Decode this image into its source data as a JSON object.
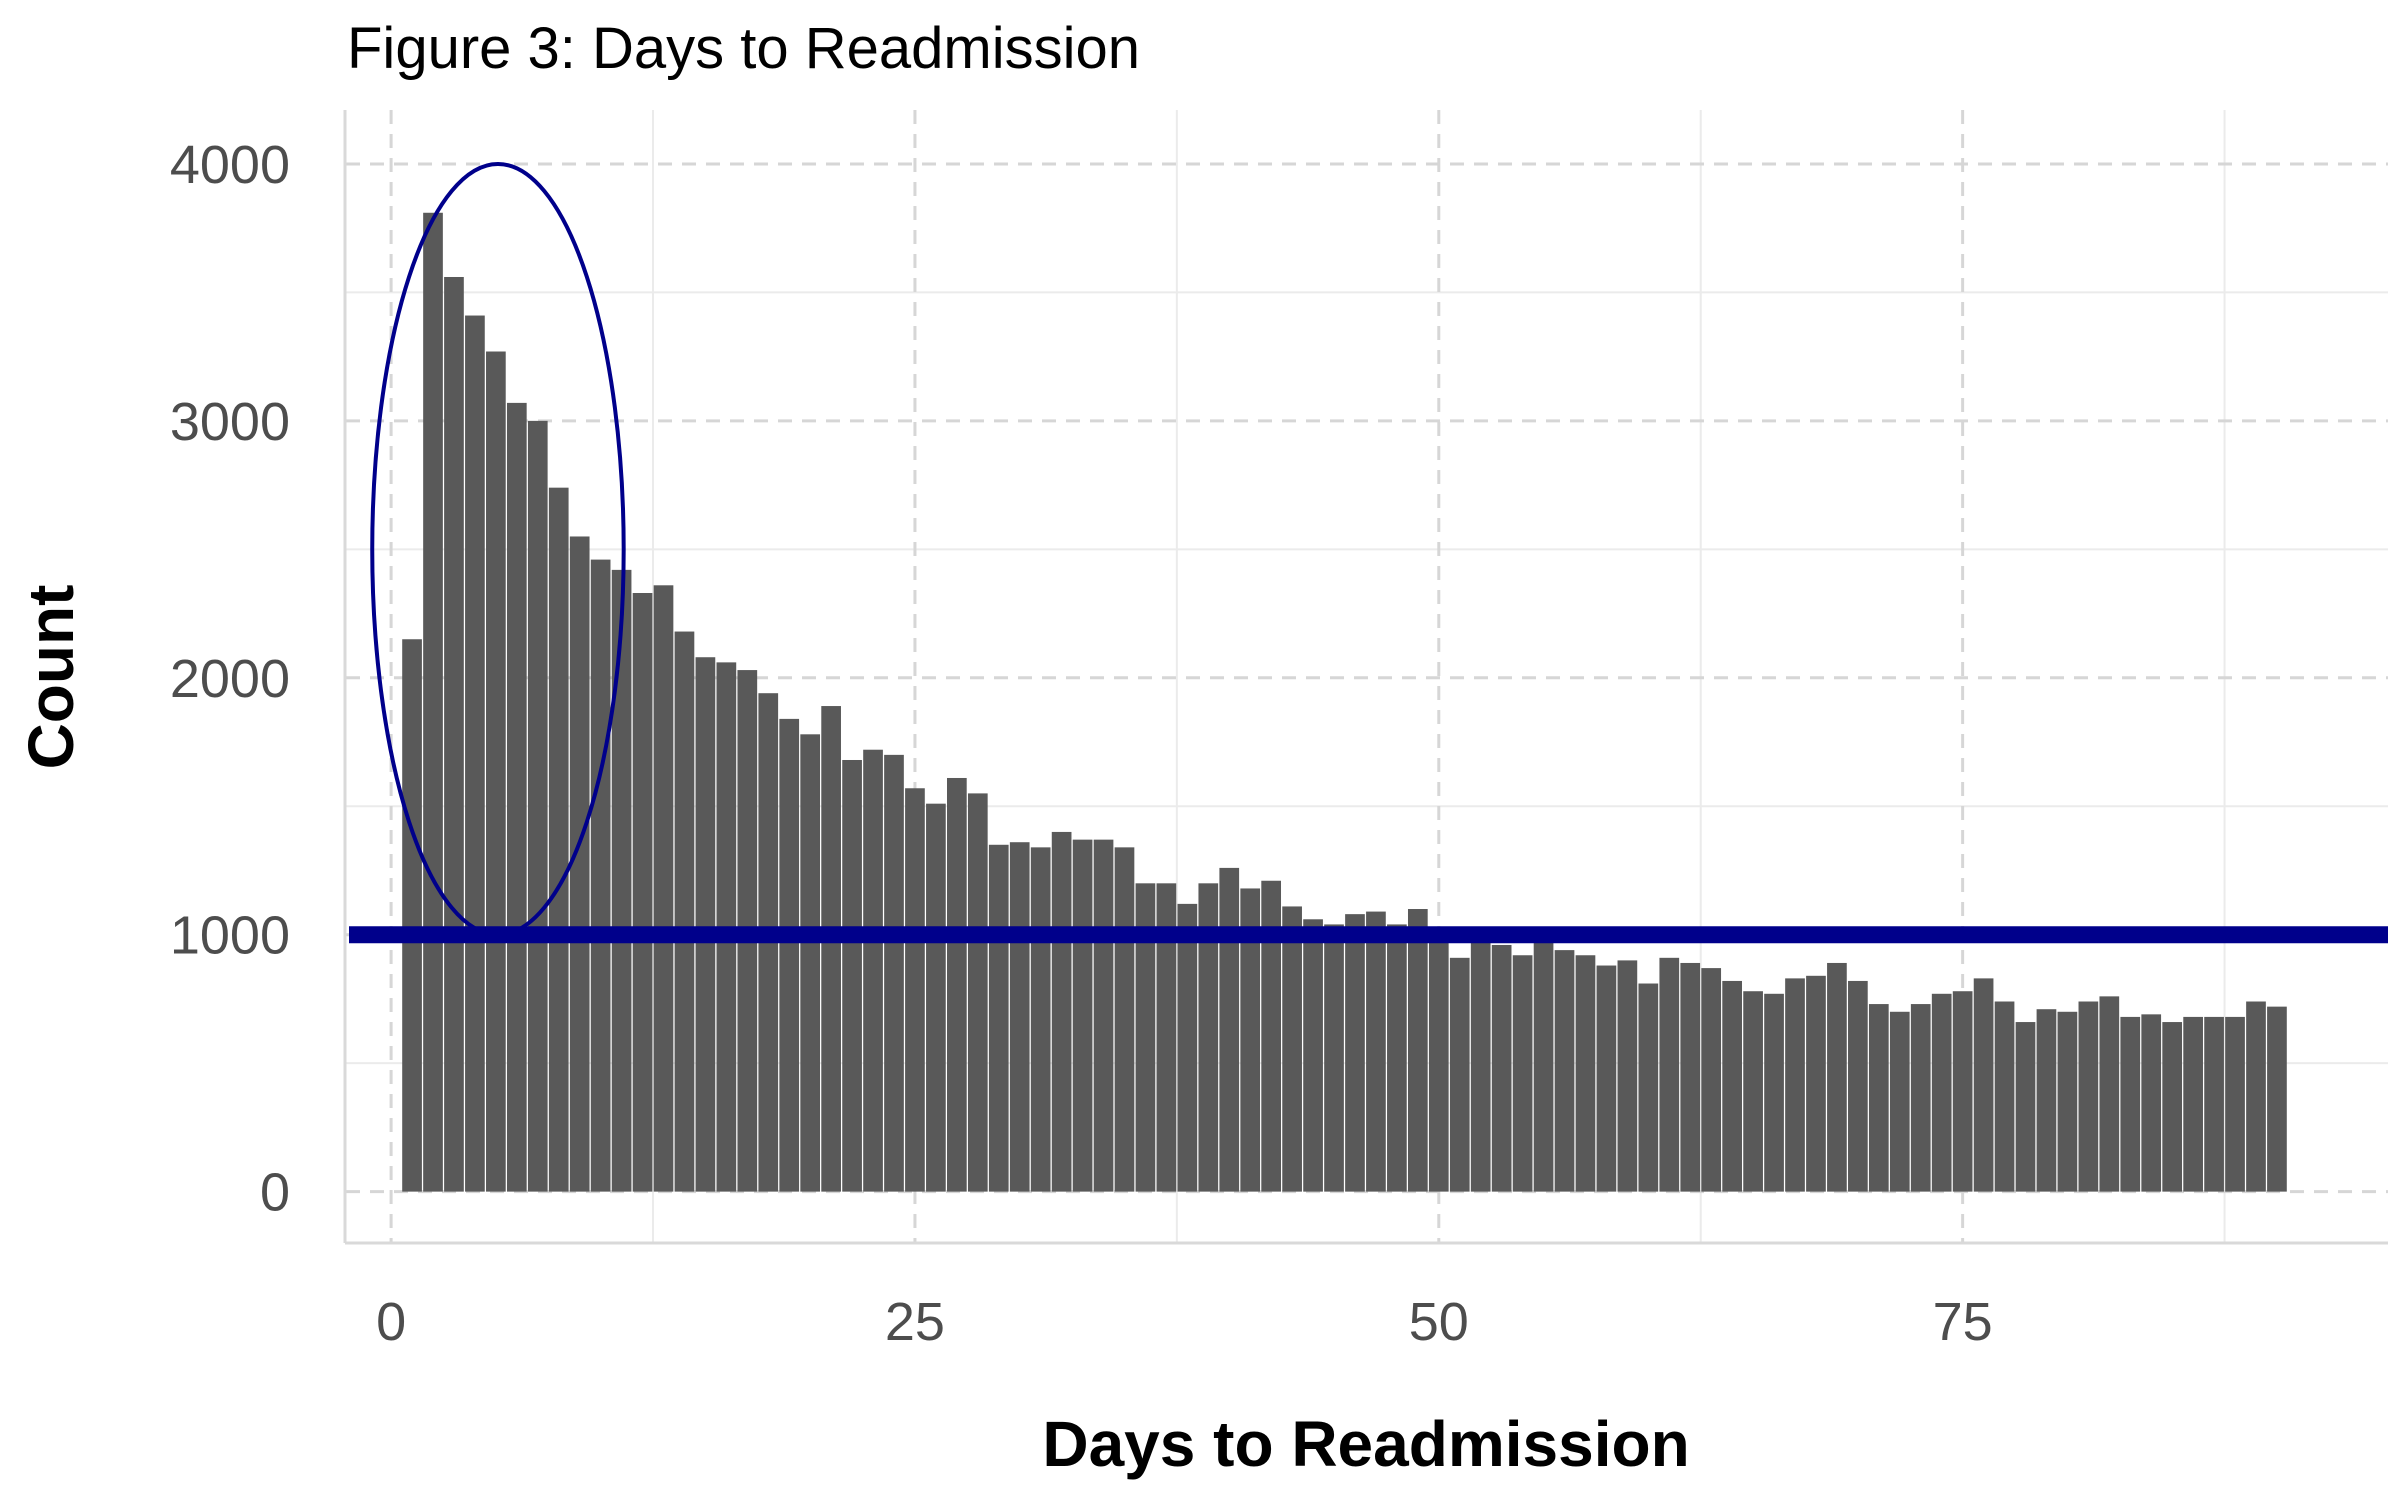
{
  "chart_data": {
    "type": "bar",
    "title": "Figure 3: Days to Readmission",
    "xlabel": "Days to Readmission",
    "ylabel": "Count",
    "xlim": [
      -2.2,
      95.3
    ],
    "ylim": [
      -200,
      4210
    ],
    "x_ticks": [
      0,
      25,
      50,
      75
    ],
    "y_ticks": [
      0,
      1000,
      2000,
      3000,
      4000
    ],
    "x_tick_labels": [
      "0",
      "25",
      "50",
      "75"
    ],
    "y_tick_labels": [
      "0",
      "1000",
      "2000",
      "3000",
      "4000"
    ],
    "grid": true,
    "bar_color": "#595959",
    "x": [
      1,
      2,
      3,
      4,
      5,
      6,
      7,
      8,
      9,
      10,
      11,
      12,
      13,
      14,
      15,
      16,
      17,
      18,
      19,
      20,
      21,
      22,
      23,
      24,
      25,
      26,
      27,
      28,
      29,
      30,
      31,
      32,
      33,
      34,
      35,
      36,
      37,
      38,
      39,
      40,
      41,
      42,
      43,
      44,
      45,
      46,
      47,
      48,
      49,
      50,
      51,
      52,
      53,
      54,
      55,
      56,
      57,
      58,
      59,
      60,
      61,
      62,
      63,
      64,
      65,
      66,
      67,
      68,
      69,
      70,
      71,
      72,
      73,
      74,
      75,
      76,
      77,
      78,
      79,
      80,
      81,
      82,
      83,
      84,
      85,
      86,
      87,
      88,
      89,
      90
    ],
    "values": [
      2150,
      3810,
      3560,
      3410,
      3270,
      3070,
      3000,
      2740,
      2550,
      2460,
      2420,
      2330,
      2360,
      2180,
      2080,
      2060,
      2030,
      1940,
      1840,
      1780,
      1890,
      1680,
      1720,
      1700,
      1570,
      1510,
      1610,
      1550,
      1350,
      1360,
      1340,
      1400,
      1370,
      1370,
      1340,
      1200,
      1200,
      1120,
      1200,
      1260,
      1180,
      1210,
      1110,
      1060,
      1040,
      1080,
      1090,
      1040,
      1100,
      970,
      910,
      990,
      960,
      920,
      990,
      940,
      920,
      880,
      900,
      810,
      910,
      890,
      870,
      820,
      780,
      770,
      830,
      840,
      890,
      820,
      730,
      700,
      730,
      770,
      780,
      830,
      740,
      660,
      710,
      700,
      740,
      760,
      680,
      690,
      660,
      680,
      680,
      680,
      740,
      720
    ],
    "annotations": {
      "reference_line": {
        "y": 1000,
        "color": "#00008b"
      },
      "ellipse": {
        "cx": 5.1,
        "cy": 2500,
        "rx": 6.0,
        "ry": 1500,
        "color": "#00008b"
      }
    }
  }
}
